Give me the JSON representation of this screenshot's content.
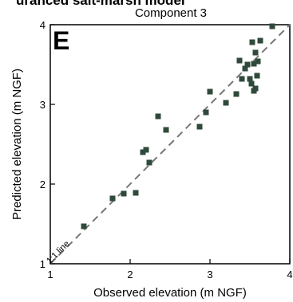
{
  "figure": {
    "cropped_title": "uranced salt-marsh model"
  },
  "chart_data": {
    "type": "scatter",
    "title": "Component 3",
    "panel_label": "E",
    "xlabel": "Observed elevation (m NGF)",
    "ylabel": "Predicted elevation (m NGF)",
    "xlim": [
      1,
      4
    ],
    "ylim": [
      1,
      4
    ],
    "xticks": [
      "1",
      "2",
      "3",
      "4"
    ],
    "yticks": [
      "1",
      "2",
      "3",
      "4"
    ],
    "reference_line": {
      "label": "1:1 line",
      "from": [
        1,
        1
      ],
      "to": [
        4,
        4
      ],
      "style": "dashed"
    },
    "grid": false,
    "marker_color": "#2f4a3a",
    "points": [
      {
        "x": 1.42,
        "y": 1.47
      },
      {
        "x": 1.78,
        "y": 1.82
      },
      {
        "x": 1.92,
        "y": 1.88
      },
      {
        "x": 2.07,
        "y": 1.89
      },
      {
        "x": 2.16,
        "y": 2.4
      },
      {
        "x": 2.2,
        "y": 2.43
      },
      {
        "x": 2.24,
        "y": 2.27
      },
      {
        "x": 2.35,
        "y": 2.85
      },
      {
        "x": 2.45,
        "y": 2.68
      },
      {
        "x": 2.87,
        "y": 2.72
      },
      {
        "x": 2.95,
        "y": 2.9
      },
      {
        "x": 3.0,
        "y": 3.16
      },
      {
        "x": 3.2,
        "y": 3.02
      },
      {
        "x": 3.33,
        "y": 3.13
      },
      {
        "x": 3.37,
        "y": 3.55
      },
      {
        "x": 3.4,
        "y": 3.32
      },
      {
        "x": 3.44,
        "y": 3.45
      },
      {
        "x": 3.47,
        "y": 3.5
      },
      {
        "x": 3.5,
        "y": 3.32
      },
      {
        "x": 3.52,
        "y": 3.26
      },
      {
        "x": 3.53,
        "y": 3.78
      },
      {
        "x": 3.55,
        "y": 3.51
      },
      {
        "x": 3.55,
        "y": 3.17
      },
      {
        "x": 3.57,
        "y": 3.65
      },
      {
        "x": 3.57,
        "y": 3.2
      },
      {
        "x": 3.59,
        "y": 3.36
      },
      {
        "x": 3.6,
        "y": 3.54
      },
      {
        "x": 3.63,
        "y": 3.8
      },
      {
        "x": 3.78,
        "y": 3.98
      }
    ]
  }
}
